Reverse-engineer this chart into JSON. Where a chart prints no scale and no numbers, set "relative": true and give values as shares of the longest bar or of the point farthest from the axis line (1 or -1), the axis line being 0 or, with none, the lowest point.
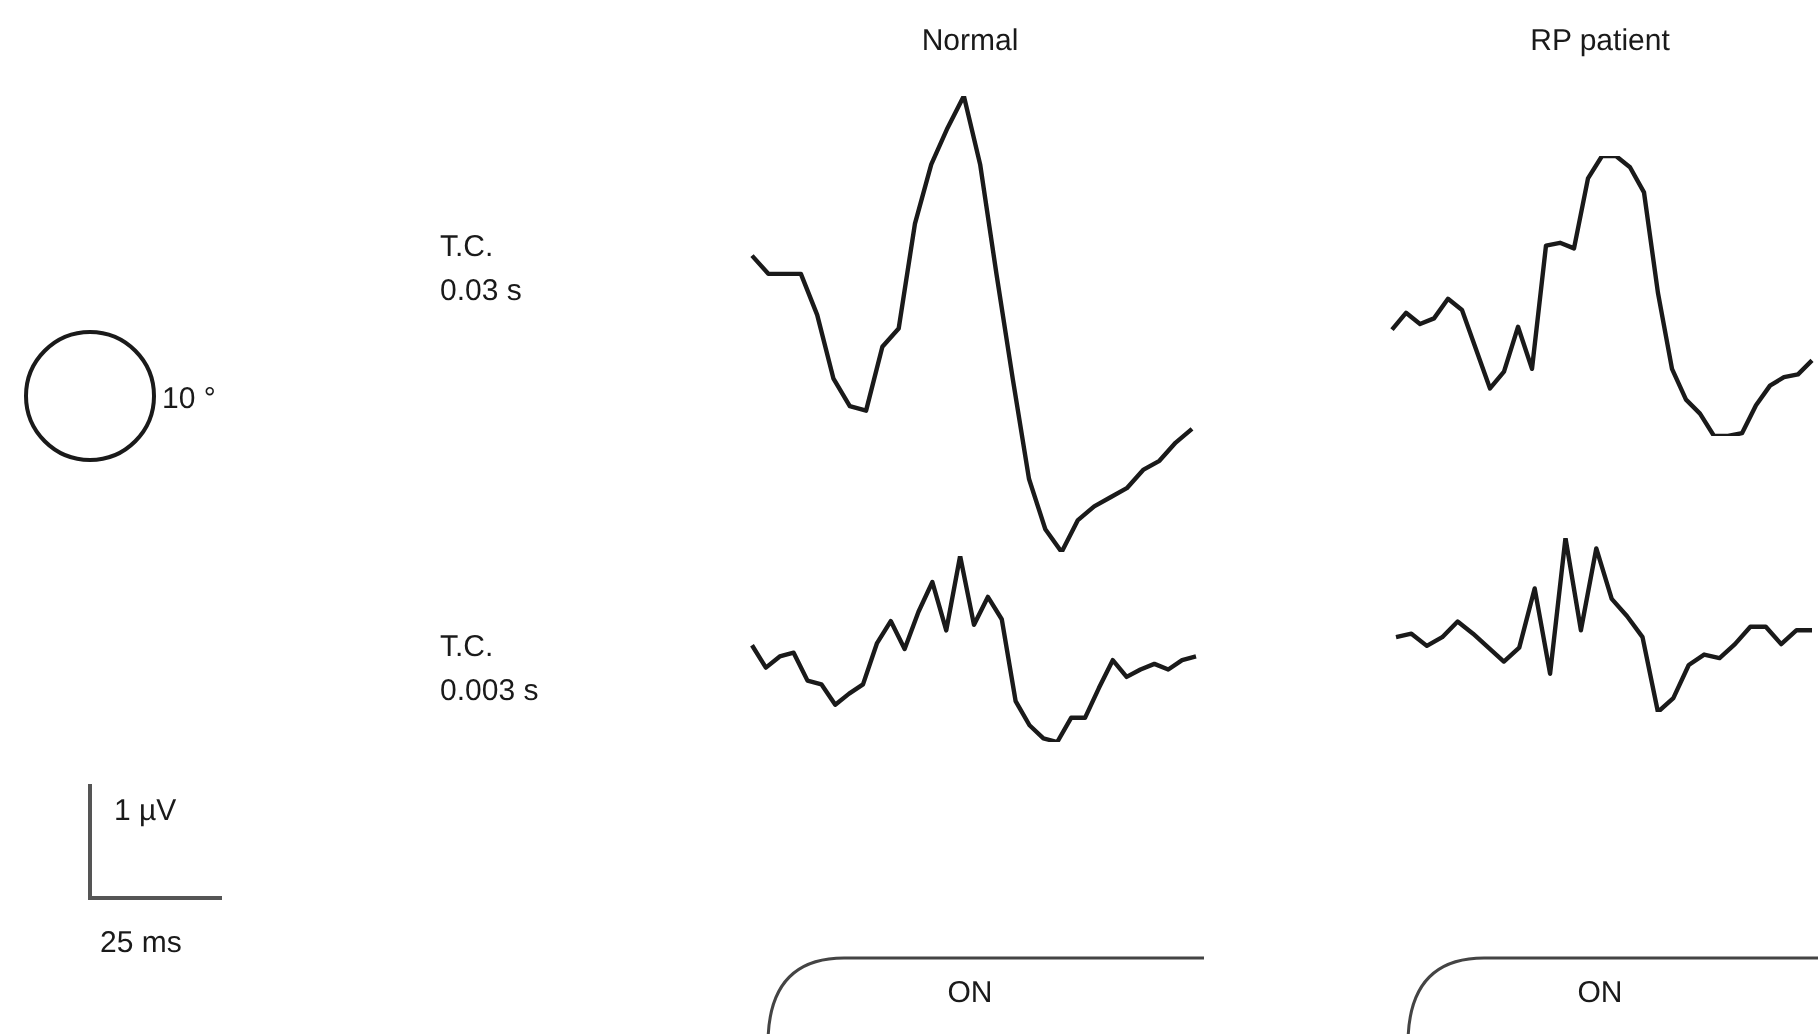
{
  "chart_data": [
    {
      "type": "line",
      "title": "Normal",
      "ylabel": "T.C. 0.03 s",
      "relative": true,
      "annotations": [
        "10 °",
        "1 µV",
        "25 ms"
      ],
      "categories": [
        null,
        null,
        null,
        null,
        null,
        null,
        null,
        null,
        null,
        null,
        null,
        null,
        null,
        null,
        null,
        null,
        null,
        null,
        null,
        null,
        null,
        null,
        null,
        null,
        null,
        null,
        null,
        null
      ],
      "series": [
        {
          "color": "#1a1a1a",
          "values": [
            0.65,
            0.61,
            0.61,
            0.61,
            0.52,
            0.38,
            0.32,
            0.31,
            0.45,
            0.49,
            0.72,
            0.85,
            0.93,
            1,
            0.85,
            0.61,
            0.38,
            0.16,
            0.05,
            0,
            0.07,
            0.1,
            0.12,
            0.14,
            0.18,
            0.2,
            0.24,
            0.27
          ]
        }
      ]
    },
    {
      "type": "line",
      "title": "RP patient",
      "relative": true,
      "categories": [
        null,
        null,
        null,
        null,
        null,
        null,
        null,
        null,
        null,
        null,
        null,
        null,
        null,
        null,
        null,
        null,
        null,
        null,
        null,
        null,
        null,
        null,
        null,
        null,
        null,
        null,
        null,
        null,
        null,
        null,
        null
      ],
      "series": [
        {
          "color": "#1a1a1a",
          "values": [
            0.38,
            0.44,
            0.4,
            0.42,
            0.49,
            0.45,
            0.31,
            0.17,
            0.23,
            0.39,
            0.24,
            0.68,
            0.69,
            0.67,
            0.92,
            1,
            1,
            0.96,
            0.87,
            0.51,
            0.24,
            0.13,
            0.08,
            0,
            0,
            0.01,
            0.11,
            0.18,
            0.21,
            0.22,
            0.27
          ]
        }
      ]
    },
    {
      "type": "line",
      "ylabel": "T.C. 0.003 s",
      "relative": true,
      "annotations": [
        "ON"
      ],
      "categories": [
        null,
        null,
        null,
        null,
        null,
        null,
        null,
        null,
        null,
        null,
        null,
        null,
        null,
        null,
        null,
        null,
        null,
        null,
        null,
        null,
        null,
        null,
        null,
        null,
        null,
        null,
        null,
        null,
        null,
        null,
        null,
        null,
        null
      ],
      "series": [
        {
          "color": "#1a1a1a",
          "values": [
            0.52,
            0.4,
            0.46,
            0.48,
            0.33,
            0.31,
            0.2,
            0.26,
            0.31,
            0.53,
            0.65,
            0.5,
            0.7,
            0.86,
            0.6,
            1,
            0.63,
            0.78,
            0.66,
            0.22,
            0.09,
            0.02,
            0,
            0.13,
            0.13,
            0.29,
            0.44,
            0.35,
            0.39,
            0.42,
            0.39,
            0.44,
            0.46
          ]
        }
      ]
    },
    {
      "type": "line",
      "relative": true,
      "annotations": [
        "ON"
      ],
      "categories": [
        null,
        null,
        null,
        null,
        null,
        null,
        null,
        null,
        null,
        null,
        null,
        null,
        null,
        null,
        null,
        null,
        null,
        null,
        null,
        null,
        null,
        null,
        null,
        null,
        null,
        null,
        null,
        null
      ],
      "series": [
        {
          "color": "#1a1a1a",
          "values": [
            0.43,
            0.45,
            0.38,
            0.43,
            0.52,
            0.45,
            0.37,
            0.29,
            0.37,
            0.71,
            0.22,
            1,
            0.47,
            0.94,
            0.65,
            0.55,
            0.43,
            0,
            0.08,
            0.27,
            0.33,
            0.31,
            0.39,
            0.49,
            0.49,
            0.39,
            0.47,
            0.47
          ]
        }
      ]
    }
  ]
}
